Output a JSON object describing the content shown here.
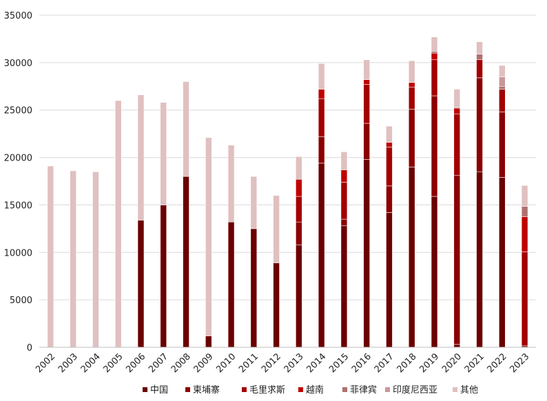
{
  "chart_data": {
    "type": "bar",
    "stacked": true,
    "title": "",
    "xlabel": "",
    "ylabel": "",
    "ylim": [
      0,
      35000
    ],
    "yticks": [
      0,
      5000,
      10000,
      15000,
      20000,
      25000,
      30000,
      35000
    ],
    "ytick_labels": [
      "0",
      "5000",
      "10000",
      "15000",
      "20000",
      "25000",
      "30000",
      "35000"
    ],
    "grid": "horizontal",
    "legend_position": "bottom",
    "categories": [
      "2002",
      "2003",
      "2004",
      "2005",
      "2006",
      "2007",
      "2008",
      "2009",
      "2010",
      "2011",
      "2012",
      "2013",
      "2014",
      "2015",
      "2016",
      "2017",
      "2018",
      "2019",
      "2020",
      "2021",
      "2022",
      "2023"
    ],
    "series": [
      {
        "name": "中国",
        "color": "#6b0000",
        "values": [
          0,
          0,
          0,
          0,
          13400,
          15000,
          18000,
          1200,
          13200,
          12500,
          8900,
          10800,
          19400,
          12800,
          19800,
          14200,
          19000,
          15900,
          300,
          18500,
          17900,
          150
        ]
      },
      {
        "name": "柬埔寨",
        "color": "#8b0000",
        "values": [
          0,
          0,
          0,
          0,
          0,
          0,
          0,
          0,
          0,
          0,
          0,
          2400,
          2800,
          700,
          3800,
          2800,
          6100,
          10600,
          17800,
          9900,
          6900,
          0
        ]
      },
      {
        "name": "毛里求斯",
        "color": "#a30000",
        "values": [
          0,
          0,
          0,
          0,
          0,
          0,
          0,
          0,
          0,
          0,
          0,
          2700,
          4000,
          3900,
          4100,
          4100,
          2300,
          3800,
          6500,
          1900,
          2400,
          9900
        ]
      },
      {
        "name": "越南",
        "color": "#c00000",
        "values": [
          0,
          0,
          0,
          0,
          0,
          0,
          0,
          0,
          0,
          0,
          0,
          1800,
          1000,
          1300,
          500,
          500,
          500,
          700,
          600,
          0,
          0,
          3700
        ]
      },
      {
        "name": "菲律宾",
        "color": "#b07070",
        "values": [
          0,
          0,
          0,
          0,
          0,
          0,
          0,
          0,
          0,
          0,
          0,
          0,
          0,
          0,
          0,
          0,
          0,
          200,
          100,
          600,
          300,
          1100
        ]
      },
      {
        "name": "印度尼西亚",
        "color": "#c99898",
        "values": [
          0,
          0,
          0,
          0,
          0,
          0,
          0,
          0,
          0,
          0,
          0,
          0,
          0,
          0,
          0,
          0,
          0,
          0,
          0,
          0,
          1000,
          0
        ]
      },
      {
        "name": "其他",
        "color": "#e0c0c0",
        "values": [
          19100,
          18600,
          18500,
          26000,
          13200,
          10800,
          10000,
          20900,
          8100,
          5500,
          7100,
          2400,
          2700,
          1900,
          2100,
          1700,
          2300,
          1500,
          1900,
          1300,
          1200,
          2200
        ]
      }
    ]
  }
}
